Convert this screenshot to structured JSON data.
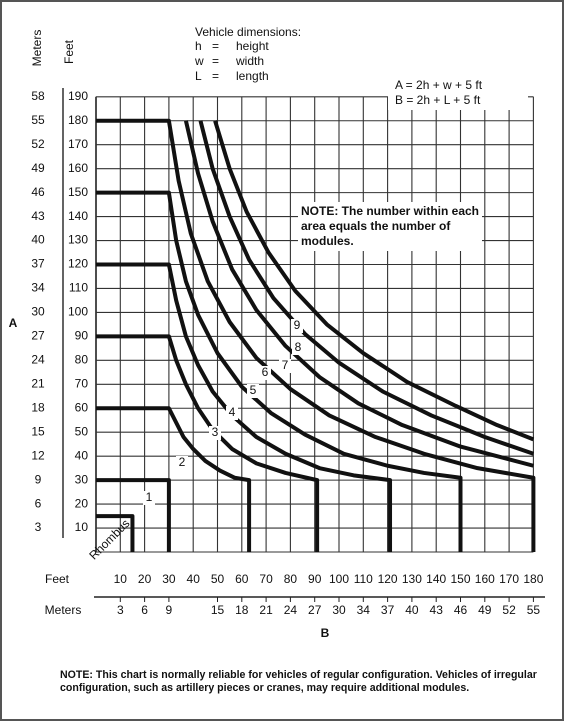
{
  "chart_data": {
    "type": "line",
    "dimensions_title": "Vehicle dimensions:",
    "dimensions": [
      {
        "symbol": "h",
        "equals": "=",
        "meaning": "height"
      },
      {
        "symbol": "w",
        "equals": "=",
        "meaning": "width"
      },
      {
        "symbol": "L",
        "equals": "=",
        "meaning": "length"
      }
    ],
    "formulas": [
      "A = 2h + w + 5 ft",
      "B = 2h + L + 5 ft"
    ],
    "note_box": "NOTE: The number within each area equals the number of modules.",
    "footnote": "NOTE: This chart is normally reliable for vehicles of regular configuration. Vehicles of irregular configuration, such as artillery pieces or cranes, may require additional modules.",
    "y_axis_letter": "A",
    "x_axis_letter": "B",
    "y_feet_label": "Feet",
    "y_meters_label": "Meters",
    "x_feet_label": "Feet",
    "x_meters_label": "Meters",
    "xlim": [
      0,
      180
    ],
    "ylim": [
      0,
      190
    ],
    "xticks": [
      10,
      20,
      30,
      40,
      50,
      60,
      70,
      80,
      90,
      100,
      110,
      120,
      130,
      140,
      150,
      160,
      170,
      180
    ],
    "yticks": [
      10,
      20,
      30,
      40,
      50,
      60,
      70,
      80,
      90,
      100,
      110,
      120,
      130,
      140,
      150,
      160,
      170,
      180,
      190
    ],
    "x_meter_ticks": [
      {
        "value": 10,
        "label": "3"
      },
      {
        "value": 20,
        "label": "6"
      },
      {
        "value": 30,
        "label": "9"
      },
      {
        "value": 50,
        "label": "15"
      },
      {
        "value": 60,
        "label": "18"
      },
      {
        "value": 70,
        "label": "21"
      },
      {
        "value": 80,
        "label": "24"
      },
      {
        "value": 90,
        "label": "27"
      },
      {
        "value": 100,
        "label": "30"
      },
      {
        "value": 110,
        "label": "34"
      },
      {
        "value": 120,
        "label": "37"
      },
      {
        "value": 130,
        "label": "40"
      },
      {
        "value": 140,
        "label": "43"
      },
      {
        "value": 150,
        "label": "46"
      },
      {
        "value": 160,
        "label": "49"
      },
      {
        "value": 170,
        "label": "52"
      },
      {
        "value": 180,
        "label": "55"
      }
    ],
    "y_meter_ticks": [
      {
        "value": 10,
        "label": "3"
      },
      {
        "value": 20,
        "label": "6"
      },
      {
        "value": 30,
        "label": "9"
      },
      {
        "value": 40,
        "label": "12"
      },
      {
        "value": 50,
        "label": "15"
      },
      {
        "value": 60,
        "label": "18"
      },
      {
        "value": 70,
        "label": "21"
      },
      {
        "value": 80,
        "label": "24"
      },
      {
        "value": 90,
        "label": "27"
      },
      {
        "value": 100,
        "label": "30"
      },
      {
        "value": 110,
        "label": "34"
      },
      {
        "value": 120,
        "label": "37"
      },
      {
        "value": 130,
        "label": "40"
      },
      {
        "value": 140,
        "label": "43"
      },
      {
        "value": 150,
        "label": "46"
      },
      {
        "value": 160,
        "label": "49"
      },
      {
        "value": 170,
        "label": "52"
      },
      {
        "value": 180,
        "label": "55"
      },
      {
        "value": 190,
        "label": "58"
      }
    ],
    "grid": true,
    "region_labels": [
      "Rhombus",
      "1",
      "2",
      "3",
      "4",
      "5",
      "6",
      "7",
      "8",
      "9"
    ],
    "series": [
      {
        "color": "#111111",
        "x": [
          0,
          15,
          15
        ],
        "values": [
          15,
          15,
          0
        ]
      },
      {
        "color": "#111111",
        "x": [
          0,
          30,
          30
        ],
        "values": [
          30,
          30,
          0
        ]
      },
      {
        "color": "#111111",
        "x": [
          0,
          30,
          33,
          36,
          40,
          45,
          51,
          57,
          63,
          63
        ],
        "values": [
          60,
          60,
          54,
          48,
          43,
          38,
          34,
          31,
          30,
          0
        ]
      },
      {
        "color": "#111111",
        "x": [
          0,
          30,
          33,
          37,
          42,
          48,
          56,
          66,
          78,
          91,
          91
        ],
        "values": [
          90,
          90,
          80,
          70,
          60,
          51,
          43,
          37,
          33,
          30,
          0
        ]
      },
      {
        "color": "#111111",
        "x": [
          0,
          30,
          33,
          37,
          42,
          48,
          56,
          66,
          78,
          92,
          106,
          121,
          121
        ],
        "values": [
          120,
          120,
          105,
          90,
          78,
          67,
          57,
          48,
          41,
          35,
          32,
          30,
          0
        ]
      },
      {
        "color": "#111111",
        "x": [
          0,
          30,
          33,
          37,
          42,
          50,
          60,
          72,
          86,
          102,
          120,
          135,
          150,
          150
        ],
        "values": [
          150,
          150,
          130,
          113,
          99,
          83,
          69,
          58,
          49,
          41,
          36,
          33,
          31,
          0
        ]
      },
      {
        "color": "#111111",
        "x": [
          0,
          30,
          34,
          39,
          46,
          55,
          66,
          80,
          96,
          115,
          135,
          157,
          180,
          180
        ],
        "values": [
          180,
          180,
          155,
          133,
          113,
          96,
          81,
          68,
          57,
          48,
          41,
          35,
          31,
          0
        ]
      },
      {
        "color": "#111111",
        "x": [
          37,
          42,
          48,
          56,
          66,
          78,
          92,
          108,
          126,
          150,
          180
        ],
        "values": [
          180,
          158,
          138,
          118,
          101,
          86,
          73,
          62,
          53,
          44,
          36
        ]
      },
      {
        "color": "#111111",
        "x": [
          43,
          48,
          55,
          63,
          73,
          86,
          100,
          118,
          138,
          160,
          180
        ],
        "values": [
          180,
          160,
          140,
          122,
          106,
          91,
          79,
          67,
          57,
          48,
          41
        ]
      },
      {
        "color": "#111111",
        "x": [
          49,
          55,
          62,
          71,
          82,
          95,
          110,
          128,
          148,
          165,
          180
        ],
        "values": [
          180,
          160,
          142,
          125,
          109,
          95,
          83,
          71,
          61,
          53,
          47
        ]
      }
    ]
  }
}
